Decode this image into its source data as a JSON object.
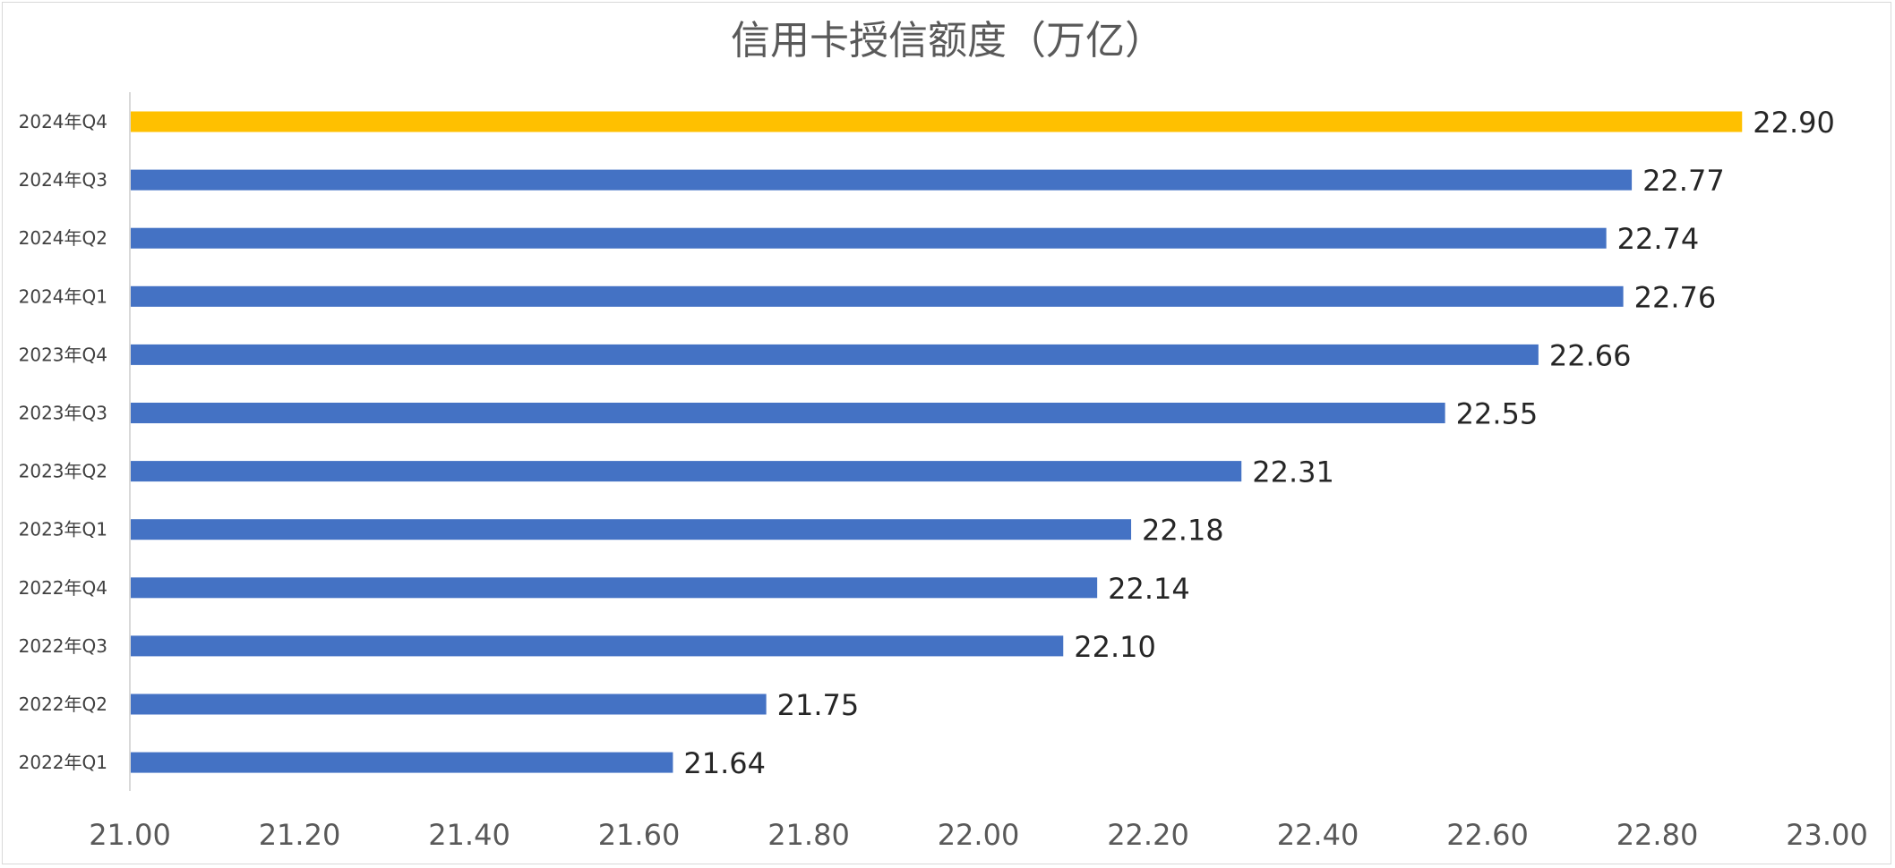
{
  "chart_data": {
    "type": "bar",
    "orientation": "horizontal",
    "title": "信用卡授信额度（万亿）",
    "categories": [
      "2024年Q4",
      "2024年Q3",
      "2024年Q2",
      "2024年Q1",
      "2023年Q4",
      "2023年Q3",
      "2023年Q2",
      "2023年Q1",
      "2022年Q4",
      "2022年Q3",
      "2022年Q2",
      "2022年Q1"
    ],
    "values": [
      22.9,
      22.77,
      22.74,
      22.76,
      22.66,
      22.55,
      22.31,
      22.18,
      22.14,
      22.1,
      21.75,
      21.64
    ],
    "value_labels": [
      "22.90",
      "22.77",
      "22.74",
      "22.76",
      "22.66",
      "22.55",
      "22.31",
      "22.18",
      "22.14",
      "22.10",
      "21.75",
      "21.64"
    ],
    "x_ticks": [
      "21.00",
      "21.20",
      "21.40",
      "21.60",
      "21.80",
      "22.00",
      "22.20",
      "22.40",
      "22.60",
      "22.80",
      "23.00"
    ],
    "xlim": [
      21.0,
      23.0
    ],
    "xlabel": "",
    "ylabel": "",
    "grid": false,
    "legend": "none",
    "colors": {
      "default_bar": "#4472C4",
      "highlight_bar": "#FFC000",
      "highlight_category": "2024年Q4"
    }
  }
}
